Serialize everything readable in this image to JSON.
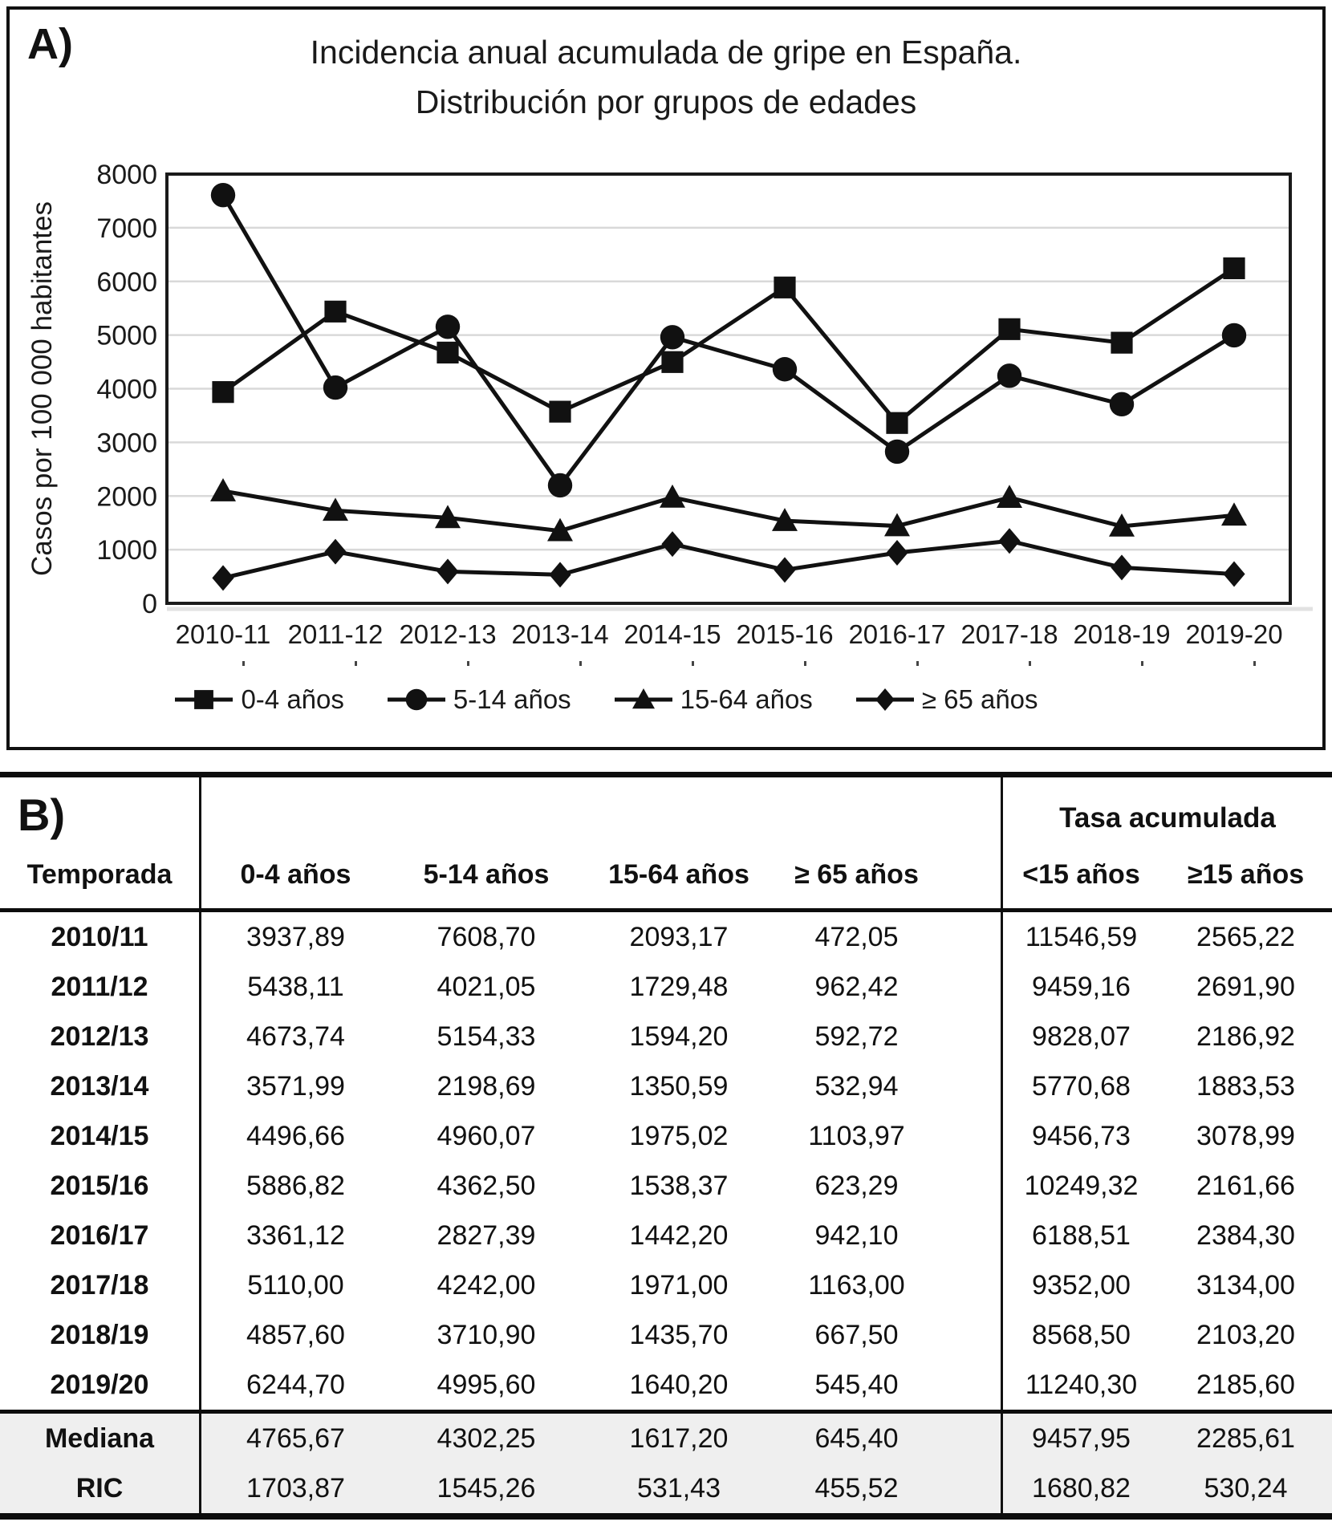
{
  "panel_a": {
    "label": "A)",
    "title_line1": "Incidencia anual acumulada de gripe en España.",
    "title_line2": "Distribución por grupos de edades",
    "chart_data": {
      "type": "line",
      "title": "Incidencia anual acumulada de gripe en España. Distribución por grupos de edades",
      "xlabel": "",
      "ylabel": "Casos por 100 000 habitantes",
      "ylim": [
        0,
        8000
      ],
      "ytick_step": 1000,
      "grid": true,
      "legend_position": "bottom",
      "categories": [
        "2010-11",
        "2011-12",
        "2012-13",
        "2013-14",
        "2014-15",
        "2015-16",
        "2016-17",
        "2017-18",
        "2018-19",
        "2019-20"
      ],
      "series": [
        {
          "name": "0-4 años",
          "marker": "square",
          "values": [
            3937.89,
            5438.11,
            4673.74,
            3571.99,
            4496.66,
            5886.82,
            3361.12,
            5110.0,
            4857.6,
            6244.7
          ]
        },
        {
          "name": "5-14 años",
          "marker": "circle",
          "values": [
            7608.7,
            4021.05,
            5154.33,
            2198.69,
            4960.07,
            4362.5,
            2827.39,
            4242.0,
            3710.9,
            4995.6
          ]
        },
        {
          "name": "15-64 años",
          "marker": "triangle",
          "values": [
            2093.17,
            1729.48,
            1594.2,
            1350.59,
            1975.02,
            1538.37,
            1442.2,
            1971.0,
            1435.7,
            1640.2
          ]
        },
        {
          "name": "≥ 65 años",
          "marker": "diamond",
          "values": [
            472.05,
            962.42,
            592.72,
            532.94,
            1103.97,
            623.29,
            942.1,
            1163.0,
            667.5,
            545.4
          ]
        }
      ]
    }
  },
  "panel_b": {
    "label": "B)",
    "group_header": "Tasa acumulada",
    "columns": [
      "Temporada",
      "0-4 años",
      "5-14 años",
      "15-64 años",
      "≥ 65 años",
      "<15 años",
      "≥15 años"
    ],
    "rows": [
      [
        "2010/11",
        "3937,89",
        "7608,70",
        "2093,17",
        "472,05",
        "11546,59",
        "2565,22"
      ],
      [
        "2011/12",
        "5438,11",
        "4021,05",
        "1729,48",
        "962,42",
        "9459,16",
        "2691,90"
      ],
      [
        "2012/13",
        "4673,74",
        "5154,33",
        "1594,20",
        "592,72",
        "9828,07",
        "2186,92"
      ],
      [
        "2013/14",
        "3571,99",
        "2198,69",
        "1350,59",
        "532,94",
        "5770,68",
        "1883,53"
      ],
      [
        "2014/15",
        "4496,66",
        "4960,07",
        "1975,02",
        "1103,97",
        "9456,73",
        "3078,99"
      ],
      [
        "2015/16",
        "5886,82",
        "4362,50",
        "1538,37",
        "623,29",
        "10249,32",
        "2161,66"
      ],
      [
        "2016/17",
        "3361,12",
        "2827,39",
        "1442,20",
        "942,10",
        "6188,51",
        "2384,30"
      ],
      [
        "2017/18",
        "5110,00",
        "4242,00",
        "1971,00",
        "1163,00",
        "9352,00",
        "3134,00"
      ],
      [
        "2018/19",
        "4857,60",
        "3710,90",
        "1435,70",
        "667,50",
        "8568,50",
        "2103,20"
      ],
      [
        "2019/20",
        "6244,70",
        "4995,60",
        "1640,20",
        "545,40",
        "11240,30",
        "2185,60"
      ]
    ],
    "summary_rows": [
      [
        "Mediana",
        "4765,67",
        "4302,25",
        "1617,20",
        "645,40",
        "9457,95",
        "2285,61"
      ],
      [
        "RIC",
        "1703,87",
        "1545,26",
        "531,43",
        "455,52",
        "1680,82",
        "530,24"
      ]
    ]
  },
  "colors": {
    "series_line": "#111111",
    "gridline": "#d9d9d9",
    "plot_border": "#1a1a1a",
    "summary_row_bg": "#efefef"
  }
}
